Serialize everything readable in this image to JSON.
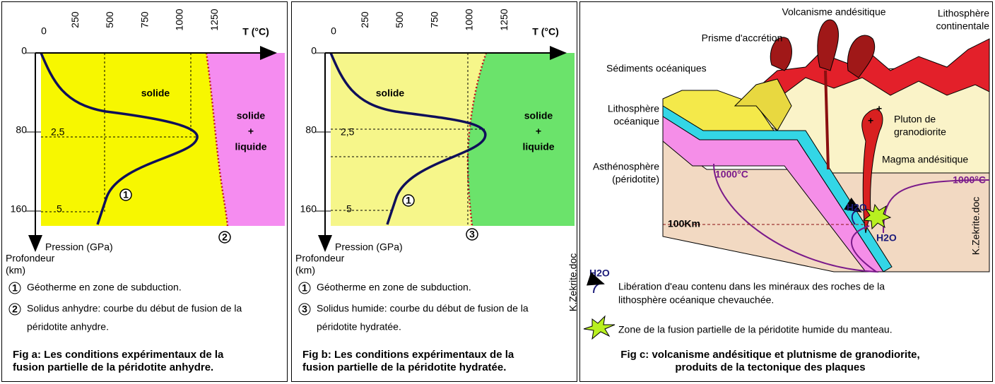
{
  "fig_a": {
    "t_ticks": [
      0,
      250,
      500,
      750,
      1000,
      1250
    ],
    "t_axis": "T (°C)",
    "depth_ticks": [
      0,
      80,
      160
    ],
    "pressure_ticks": [
      "2,5",
      "5"
    ],
    "solid": "solide",
    "mixed": [
      "solide",
      "+",
      "liquide"
    ],
    "markers": [
      "1",
      "2"
    ],
    "pressure_label": "Pression (GPa)",
    "depth_label": [
      "Profondeur",
      "(km)"
    ],
    "legend": [
      {
        "marker": "1",
        "text": [
          "Géotherme en zone de subduction."
        ]
      },
      {
        "marker": "2",
        "text": [
          "Solidus anhydre: courbe du début de fusion de la",
          "péridotite anhydre."
        ]
      }
    ],
    "caption": [
      "Fig a: Les conditions expérimentaux de la",
      "fusion partielle de la péridotite anhydre."
    ]
  },
  "fig_b": {
    "t_ticks": [
      0,
      250,
      500,
      750,
      1000,
      1250
    ],
    "t_axis": "T (°C)",
    "depth_ticks": [
      0,
      80,
      160
    ],
    "pressure_ticks": [
      "2,5",
      "5"
    ],
    "solid": "solide",
    "mixed": [
      "solide",
      "+",
      "liquide"
    ],
    "markers": [
      "1",
      "3"
    ],
    "pressure_label": "Pression (GPa)",
    "depth_label": [
      "Profondeur",
      "(km)"
    ],
    "legend": [
      {
        "marker": "1",
        "text": [
          "Géotherme en zone de subduction."
        ]
      },
      {
        "marker": "3",
        "text": [
          "Solidus humide: courbe du début de fusion de la",
          "péridotite hydratée."
        ]
      }
    ],
    "caption": [
      "Fig b: Les conditions expérimentaux de la",
      "fusion partielle de la péridotite hydratée."
    ],
    "credit": "K.Zekrite.doc"
  },
  "fig_c": {
    "labels": {
      "volcanism": "Volcanisme andésitique",
      "prism": "Prisme d'accrétion",
      "continental": [
        "Lithosphère",
        "continentale"
      ],
      "sediments": "Sédiments océaniques",
      "oceanic": [
        "Lithosphère",
        "océanique"
      ],
      "pluton": [
        "Pluton de",
        "granodiorite"
      ],
      "magma": "Magma andésitique",
      "asthenosphere": [
        "Asthénosphère",
        "(péridotite)"
      ],
      "isotherm_left": "1000°C",
      "isotherm_right": "1000°C",
      "water_upper": "H2O",
      "water_lower": "H2O",
      "depth": "100Km",
      "credit": "K.Zekrite.doc"
    },
    "legend": [
      {
        "symbol": "H2O",
        "text": [
          "Libération d'eau contenu dans les minéraux des roches de la",
          "lithosphère océanique chevauchée."
        ]
      },
      {
        "text": [
          "Zone de la fusion partielle de la péridotite humide du manteau."
        ]
      }
    ],
    "caption": [
      "Fig c: volcanisme andésitique et plutnisme de granodiorite,",
      "produits de la tectonique des plaques"
    ]
  }
}
